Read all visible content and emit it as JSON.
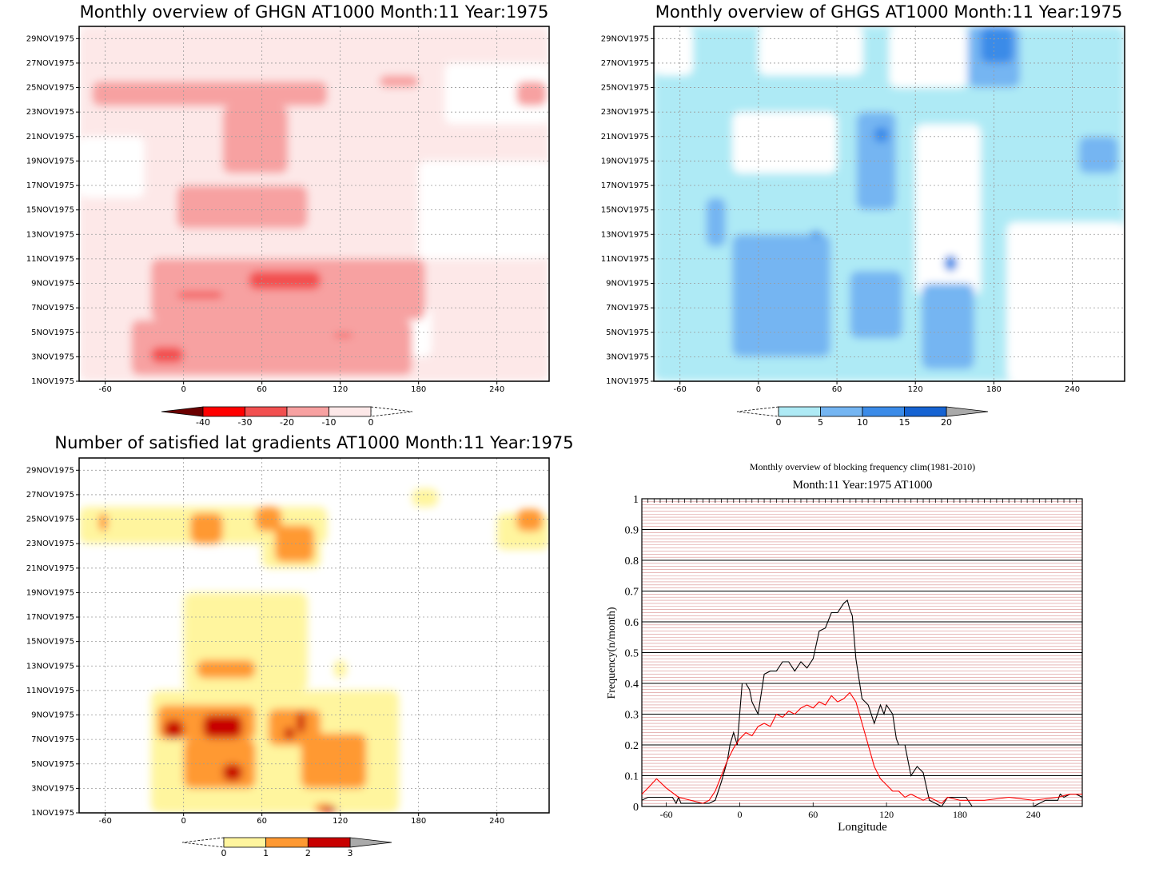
{
  "chart_data": [
    {
      "type": "heatmap",
      "panel": "ghgn",
      "title": "Monthly overview of GHGN AT1000 Month:11 Year:1975",
      "x_ticks": [
        -60,
        0,
        60,
        120,
        180,
        240
      ],
      "x_range": [
        -80,
        280
      ],
      "y_ticks": [
        "1NOV1975",
        "3NOV1975",
        "5NOV1975",
        "7NOV1975",
        "9NOV1975",
        "11NOV1975",
        "13NOV1975",
        "15NOV1975",
        "17NOV1975",
        "19NOV1975",
        "21NOV1975",
        "23NOV1975",
        "25NOV1975",
        "27NOV1975",
        "29NOV1975"
      ],
      "y_range": [
        1,
        30
      ],
      "colorbar": {
        "ticks": [
          "-40",
          "-30",
          "-20",
          "-10",
          "0"
        ],
        "colors": [
          "#6b0000",
          "#ff0000",
          "#f25050",
          "#f7a1a1",
          "#fde8e8",
          "#ffffff"
        ]
      },
      "regions": [
        {
          "level": -10,
          "x0": -80,
          "x1": 280,
          "y0": 1,
          "y1": 30
        },
        {
          "level": 0,
          "x0": 180,
          "x1": 280,
          "y0": 11,
          "y1": 19
        },
        {
          "level": 0,
          "x0": -80,
          "x1": -30,
          "y0": 16,
          "y1": 21
        },
        {
          "level": 0,
          "x0": 140,
          "x1": 190,
          "y0": 3,
          "y1": 7
        },
        {
          "level": 0,
          "x0": 200,
          "x1": 280,
          "y0": 22,
          "y1": 27
        },
        {
          "level": -20,
          "x0": -70,
          "x1": 110,
          "y0": 23.5,
          "y1": 25.5
        },
        {
          "level": -20,
          "x0": 30,
          "x1": 80,
          "y0": 18,
          "y1": 23.5
        },
        {
          "level": -20,
          "x0": -5,
          "x1": 95,
          "y0": 13.5,
          "y1": 17
        },
        {
          "level": -20,
          "x0": -25,
          "x1": 185,
          "y0": 6,
          "y1": 11
        },
        {
          "level": -20,
          "x0": -40,
          "x1": 175,
          "y0": 1.5,
          "y1": 6
        },
        {
          "level": -20,
          "x0": 150,
          "x1": 180,
          "y0": 25,
          "y1": 26
        },
        {
          "level": -20,
          "x0": 255,
          "x1": 278,
          "y0": 23.5,
          "y1": 25.5
        },
        {
          "level": -30,
          "x0": 50,
          "x1": 105,
          "y0": 8.5,
          "y1": 10
        },
        {
          "level": -30,
          "x0": -25,
          "x1": 0,
          "y0": 2.5,
          "y1": 3.8
        },
        {
          "level": -30,
          "x0": -5,
          "x1": 30,
          "y0": 7.8,
          "y1": 8.3
        },
        {
          "level": -30,
          "x0": 115,
          "x1": 130,
          "y0": 4.6,
          "y1": 4.9
        }
      ]
    },
    {
      "type": "heatmap",
      "panel": "ghgs",
      "title": "Monthly overview of GHGS AT1000 Month:11 Year:1975",
      "x_ticks": [
        -60,
        0,
        60,
        120,
        180,
        240
      ],
      "x_range": [
        -80,
        280
      ],
      "y_ticks": [
        "1NOV1975",
        "3NOV1975",
        "5NOV1975",
        "7NOV1975",
        "9NOV1975",
        "11NOV1975",
        "13NOV1975",
        "15NOV1975",
        "17NOV1975",
        "19NOV1975",
        "21NOV1975",
        "23NOV1975",
        "25NOV1975",
        "27NOV1975",
        "29NOV1975"
      ],
      "y_range": [
        1,
        30
      ],
      "colorbar": {
        "ticks": [
          "0",
          "5",
          "10",
          "15",
          "20"
        ],
        "colors": [
          "#ffffff",
          "#aeeaf5",
          "#74b5f2",
          "#3b8be8",
          "#1663d2",
          "#aaaaaa"
        ]
      },
      "regions": [
        {
          "level": 5,
          "x0": -80,
          "x1": 280,
          "y0": 1,
          "y1": 30
        },
        {
          "level": 0,
          "x0": -20,
          "x1": 60,
          "y0": 18,
          "y1": 23
        },
        {
          "level": 0,
          "x0": 120,
          "x1": 170,
          "y0": 8,
          "y1": 22
        },
        {
          "level": 0,
          "x0": 190,
          "x1": 280,
          "y0": 1,
          "y1": 14
        },
        {
          "level": 0,
          "x0": -80,
          "x1": -50,
          "y0": 26,
          "y1": 30
        },
        {
          "level": 0,
          "x0": 0,
          "x1": 80,
          "y0": 26,
          "y1": 30
        },
        {
          "level": 0,
          "x0": 100,
          "x1": 160,
          "y0": 25,
          "y1": 30
        },
        {
          "level": 10,
          "x0": -20,
          "x1": 55,
          "y0": 3,
          "y1": 13
        },
        {
          "level": 10,
          "x0": 70,
          "x1": 110,
          "y0": 4.5,
          "y1": 10
        },
        {
          "level": 10,
          "x0": 75,
          "x1": 105,
          "y0": 15,
          "y1": 23
        },
        {
          "level": 10,
          "x0": 160,
          "x1": 200,
          "y0": 25,
          "y1": 30
        },
        {
          "level": 10,
          "x0": 125,
          "x1": 165,
          "y0": 2,
          "y1": 9
        },
        {
          "level": 10,
          "x0": 245,
          "x1": 275,
          "y0": 18,
          "y1": 21
        },
        {
          "level": 10,
          "x0": -40,
          "x1": -25,
          "y0": 12,
          "y1": 16
        },
        {
          "level": 15,
          "x0": 170,
          "x1": 195,
          "y0": 27,
          "y1": 30
        },
        {
          "level": 15,
          "x0": 88,
          "x1": 100,
          "y0": 20.5,
          "y1": 21.8
        },
        {
          "level": 15,
          "x0": 142,
          "x1": 152,
          "y0": 10,
          "y1": 11.3
        },
        {
          "level": 15,
          "x0": 40,
          "x1": 48,
          "y0": 12.8,
          "y1": 13.3
        }
      ]
    },
    {
      "type": "heatmap",
      "panel": "gradients",
      "title": "Number of satisfied lat gradients AT1000 Month:11 Year:1975",
      "x_ticks": [
        -60,
        0,
        60,
        120,
        180,
        240
      ],
      "x_range": [
        -80,
        280
      ],
      "y_ticks": [
        "1NOV1975",
        "3NOV1975",
        "5NOV1975",
        "7NOV1975",
        "9NOV1975",
        "11NOV1975",
        "13NOV1975",
        "15NOV1975",
        "17NOV1975",
        "19NOV1975",
        "21NOV1975",
        "23NOV1975",
        "25NOV1975",
        "27NOV1975",
        "29NOV1975"
      ],
      "y_range": [
        1,
        30
      ],
      "colorbar": {
        "ticks": [
          "0",
          "1",
          "2",
          "3"
        ],
        "colors": [
          "#ffffff",
          "#fff59e",
          "#ff9933",
          "#c80000",
          "#aaaaaa"
        ]
      },
      "regions": [
        {
          "level": 1,
          "x0": -80,
          "x1": 110,
          "y0": 23,
          "y1": 26
        },
        {
          "level": 1,
          "x0": 60,
          "x1": 105,
          "y0": 21,
          "y1": 25
        },
        {
          "level": 1,
          "x0": 0,
          "x1": 95,
          "y0": 11,
          "y1": 19
        },
        {
          "level": 1,
          "x0": -25,
          "x1": 165,
          "y0": 1,
          "y1": 11
        },
        {
          "level": 1,
          "x0": 175,
          "x1": 195,
          "y0": 26,
          "y1": 27.5
        },
        {
          "level": 1,
          "x0": 240,
          "x1": 280,
          "y0": 22.5,
          "y1": 25.5
        },
        {
          "level": 1,
          "x0": 115,
          "x1": 125,
          "y0": 12,
          "y1": 13.5
        },
        {
          "level": 2,
          "x0": 5,
          "x1": 30,
          "y0": 23,
          "y1": 25.5
        },
        {
          "level": 2,
          "x0": 55,
          "x1": 75,
          "y0": 24,
          "y1": 26
        },
        {
          "level": 2,
          "x0": 70,
          "x1": 100,
          "y0": 21.5,
          "y1": 24.5
        },
        {
          "level": 2,
          "x0": 10,
          "x1": 55,
          "y0": 12,
          "y1": 13.5
        },
        {
          "level": 2,
          "x0": -20,
          "x1": 55,
          "y0": 7,
          "y1": 9.8
        },
        {
          "level": 2,
          "x0": 0,
          "x1": 55,
          "y0": 3,
          "y1": 7
        },
        {
          "level": 2,
          "x0": 65,
          "x1": 105,
          "y0": 6.5,
          "y1": 9.5
        },
        {
          "level": 2,
          "x0": 90,
          "x1": 140,
          "y0": 3,
          "y1": 7.5
        },
        {
          "level": 2,
          "x0": -65,
          "x1": -58,
          "y0": 24,
          "y1": 25.5
        },
        {
          "level": 2,
          "x0": 255,
          "x1": 275,
          "y0": 24,
          "y1": 25.8
        },
        {
          "level": 2,
          "x0": 100,
          "x1": 115,
          "y0": 1,
          "y1": 1.8
        },
        {
          "level": 3,
          "x0": -15,
          "x1": 0,
          "y0": 7.1,
          "y1": 8.6
        },
        {
          "level": 3,
          "x0": 15,
          "x1": 45,
          "y0": 7.1,
          "y1": 9
        },
        {
          "level": 3,
          "x0": 30,
          "x1": 45,
          "y0": 3.6,
          "y1": 5
        },
        {
          "level": 3,
          "x0": 77,
          "x1": 85,
          "y0": 7,
          "y1": 8
        },
        {
          "level": 3,
          "x0": 87,
          "x1": 93,
          "y0": 7.5,
          "y1": 9.3
        },
        {
          "level": 3,
          "x0": 105,
          "x1": 118,
          "y0": 1,
          "y1": 1.5
        }
      ]
    },
    {
      "type": "line",
      "panel": "blocking",
      "title": "Monthly overview of blocking frequency clim(1981-2010)",
      "subtitle": "Month:11 Year:1975  AT1000",
      "xlabel": "Longitude",
      "ylabel": "Frequency(n/month)",
      "xlim": [
        -80,
        280
      ],
      "ylim": [
        0,
        1
      ],
      "x_ticks": [
        -60,
        0,
        60,
        120,
        180,
        240
      ],
      "y_ticks": [
        "0",
        "0.1",
        "0.2",
        "0.3",
        "0.4",
        "0.5",
        "0.6",
        "0.7",
        "0.8",
        "0.9",
        "1"
      ],
      "grid": true,
      "series": [
        {
          "color": "#000000",
          "x": [
            -80,
            -75,
            -55,
            -52,
            -50,
            -48,
            -40,
            -25,
            -20,
            -15,
            -10,
            -8,
            -5,
            -2,
            0,
            2,
            5,
            8,
            10,
            15,
            20,
            25,
            30,
            35,
            40,
            45,
            50,
            55,
            60,
            65,
            70,
            75,
            80,
            85,
            88,
            90,
            92,
            95,
            100,
            105,
            110,
            115,
            118,
            120,
            125,
            128,
            130,
            135,
            140,
            145,
            150,
            155,
            160,
            165,
            170,
            175,
            180,
            185,
            190,
            195,
            200,
            210,
            220,
            240,
            250,
            260,
            262,
            265,
            270,
            275,
            280
          ],
          "y": [
            0.02,
            0.03,
            0.03,
            0.01,
            0.03,
            0.01,
            0.01,
            0.01,
            0.02,
            0.08,
            0.15,
            0.2,
            0.24,
            0.2,
            0.3,
            0.4,
            0.4,
            0.38,
            0.34,
            0.3,
            0.43,
            0.44,
            0.44,
            0.47,
            0.47,
            0.44,
            0.47,
            0.45,
            0.48,
            0.57,
            0.58,
            0.63,
            0.63,
            0.66,
            0.67,
            0.64,
            0.62,
            0.48,
            0.35,
            0.33,
            0.27,
            0.33,
            0.3,
            0.33,
            0.3,
            0.22,
            0.2,
            0.2,
            0.1,
            0.13,
            0.11,
            0.02,
            0.01,
            0.0,
            0.03,
            0.03,
            0.03,
            0.03,
            0.0,
            0.0,
            0.0,
            0.0,
            0.0,
            0.0,
            0.02,
            0.02,
            0.04,
            0.03,
            0.04,
            0.04,
            0.03
          ]
        },
        {
          "color": "#ff0000",
          "x": [
            -80,
            -75,
            -68,
            -60,
            -50,
            -40,
            -30,
            -25,
            -20,
            -15,
            -10,
            -5,
            0,
            5,
            10,
            15,
            20,
            25,
            30,
            35,
            40,
            45,
            50,
            55,
            60,
            65,
            70,
            75,
            80,
            85,
            90,
            95,
            100,
            105,
            110,
            115,
            120,
            125,
            130,
            135,
            140,
            145,
            150,
            155,
            160,
            165,
            170,
            180,
            200,
            220,
            240,
            260,
            270,
            280
          ],
          "y": [
            0.04,
            0.06,
            0.09,
            0.06,
            0.03,
            0.02,
            0.01,
            0.02,
            0.05,
            0.1,
            0.15,
            0.19,
            0.22,
            0.24,
            0.23,
            0.26,
            0.27,
            0.26,
            0.3,
            0.29,
            0.31,
            0.3,
            0.32,
            0.33,
            0.32,
            0.34,
            0.33,
            0.36,
            0.34,
            0.35,
            0.37,
            0.34,
            0.27,
            0.2,
            0.13,
            0.09,
            0.07,
            0.05,
            0.05,
            0.03,
            0.04,
            0.03,
            0.02,
            0.03,
            0.02,
            0.01,
            0.03,
            0.02,
            0.02,
            0.03,
            0.02,
            0.03,
            0.04,
            0.04
          ]
        }
      ]
    }
  ]
}
